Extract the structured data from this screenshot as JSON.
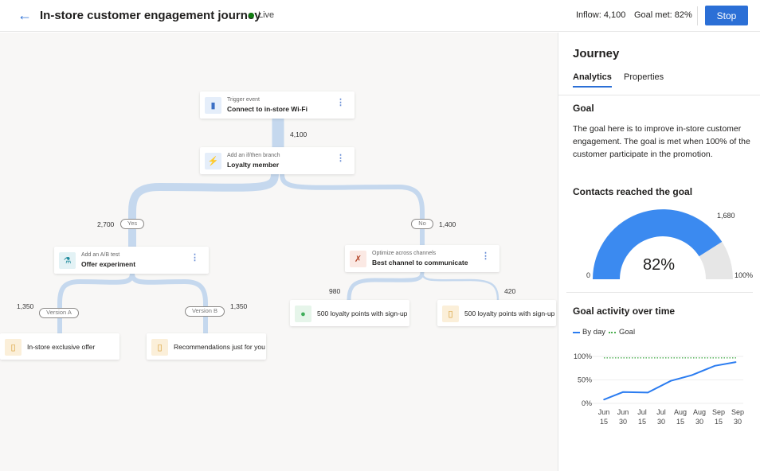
{
  "header": {
    "title": "In-store customer engagement journey",
    "status": "Live",
    "inflow": "Inflow: 4,100",
    "goal_met": "Goal met: 82%",
    "stop_label": "Stop"
  },
  "flow": {
    "trigger": {
      "subtitle": "Trigger event",
      "title": "Connect to in-store Wi-Fi"
    },
    "branch": {
      "subtitle": "Add an if/then branch",
      "title": "Loyalty member"
    },
    "ab_test": {
      "subtitle": "Add an A/B test",
      "title": "Offer experiment"
    },
    "optimize": {
      "subtitle": "Optimize across channels",
      "title": "Best channel to communicate"
    },
    "leaf_a": {
      "title": "In-store exclusive offer"
    },
    "leaf_b": {
      "title": "Recommendations just for you"
    },
    "leaf_c": {
      "title": "500 loyalty points with sign-up"
    },
    "leaf_d": {
      "title": "500 loyalty points with sign-up"
    },
    "counts": {
      "main": "4,100",
      "yes": "2,700",
      "no": "1,400",
      "version_a": "1,350",
      "version_b": "1,350",
      "channel_1": "980",
      "channel_2": "420"
    },
    "pills": {
      "yes": "Yes",
      "no": "No",
      "version_a": "Version A",
      "version_b": "Version B"
    }
  },
  "panel": {
    "title": "Journey",
    "tabs": [
      {
        "label": "Analytics",
        "active": true
      },
      {
        "label": "Properties",
        "active": false
      }
    ],
    "goal_heading": "Goal",
    "goal_text": "The goal here is to improve in-store customer engagement. The goal is met when 100% of the customer participate in the promotion.",
    "contacts_heading": "Contacts reached the goal",
    "gauge": {
      "value_pct": 82,
      "label": "82%",
      "min_label": "0",
      "max_label": "100%",
      "target_label": "1,680",
      "fill_color": "#3b8af0",
      "track_color": "#e6e6e6"
    },
    "activity_heading": "Goal activity over time"
  },
  "chart_data": {
    "type": "line",
    "legend": [
      "By day",
      "Goal"
    ],
    "legend_placement": "top-left",
    "y_ticks": [
      "100%",
      "50%",
      "0%"
    ],
    "ylim": [
      0,
      100
    ],
    "x_tick_labels": [
      [
        "Jun",
        "15"
      ],
      [
        "Jun",
        "30"
      ],
      [
        "Jul",
        "15"
      ],
      [
        "Jul",
        "30"
      ],
      [
        "Aug",
        "15"
      ],
      [
        "Aug",
        "30"
      ],
      [
        "Sep",
        "15"
      ],
      [
        "Sep",
        "30"
      ]
    ],
    "series": [
      {
        "name": "By day",
        "color": "#2b7cf0",
        "x": [
          0,
          1,
          2.3,
          3.5,
          4.6,
          5.8,
          6.9
        ],
        "values": [
          8,
          24,
          23,
          48,
          60,
          80,
          88
        ]
      },
      {
        "name": "Goal",
        "color": "#4caf50",
        "dashed": true,
        "x": [
          0,
          7
        ],
        "values": [
          97,
          97
        ]
      }
    ]
  }
}
